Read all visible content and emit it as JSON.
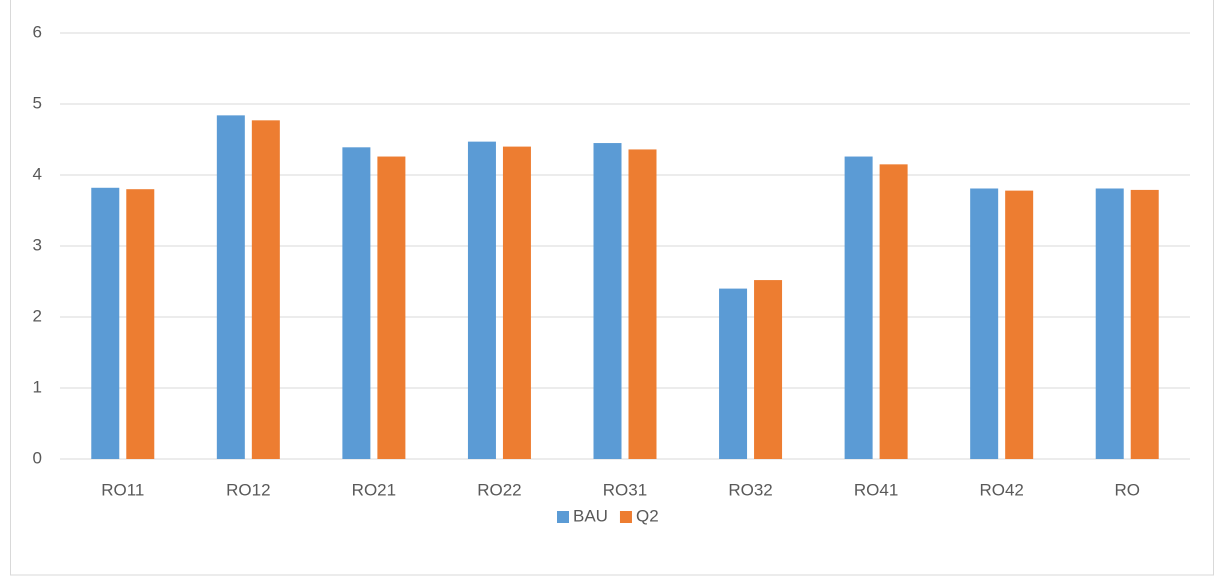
{
  "chart_data": {
    "type": "bar",
    "categories": [
      "RO11",
      "RO12",
      "RO21",
      "RO22",
      "RO31",
      "RO32",
      "RO41",
      "RO42",
      "RO"
    ],
    "series": [
      {
        "name": "BAU",
        "color": "#5b9bd5",
        "values": [
          3.82,
          4.84,
          4.39,
          4.47,
          4.45,
          2.4,
          4.26,
          3.81,
          3.81
        ]
      },
      {
        "name": "Q2",
        "color": "#ed7d31",
        "values": [
          3.8,
          4.77,
          4.26,
          4.4,
          4.36,
          2.52,
          4.15,
          3.78,
          3.79
        ]
      }
    ],
    "ylim": [
      0,
      6
    ],
    "yticks": [
      0,
      1,
      2,
      3,
      4,
      5,
      6
    ],
    "grid": true,
    "legend": "bottom"
  }
}
